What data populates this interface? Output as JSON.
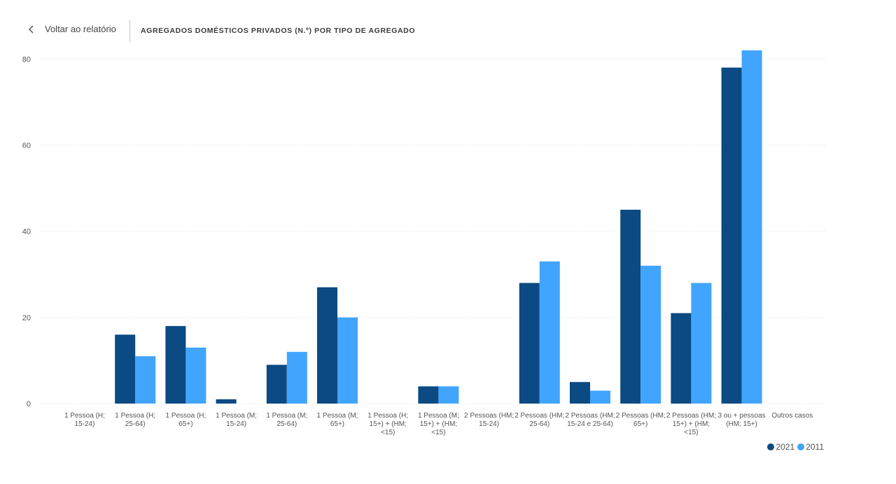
{
  "header": {
    "back_label": "Voltar ao relatório",
    "title": "AGREGADOS DOMÉSTICOS PRIVADOS (N.º) POR TIPO DE AGREGADO"
  },
  "colors": {
    "series_2021": "#0b4a82",
    "series_2011": "#41a5fd",
    "grid": "#e0e0e0",
    "axis_text": "#555555"
  },
  "chart_data": {
    "type": "bar",
    "title": "AGREGADOS DOMÉSTICOS PRIVADOS (N.º) POR TIPO DE AGREGADO",
    "xlabel": "",
    "ylabel": "",
    "ylim": [
      0,
      82
    ],
    "yticks": [
      0,
      20,
      40,
      60,
      80
    ],
    "grid": true,
    "legend_position": "bottom-right",
    "categories": [
      [
        "1 Pessoa (H;",
        "15-24)"
      ],
      [
        "1 Pessoa (H;",
        "25-64)"
      ],
      [
        "1 Pessoa (H;",
        "65+)"
      ],
      [
        "1 Pessoa (M;",
        "15-24)"
      ],
      [
        "1 Pessoa (M;",
        "25-64)"
      ],
      [
        "1 Pessoa (M;",
        "65+)"
      ],
      [
        "1 Pessoa (H;",
        "15+) + (HM;",
        "<15)"
      ],
      [
        "1 Pessoa (M;",
        "15+) + (HM;",
        "<15)"
      ],
      [
        "2 Pessoas (HM;",
        "15-24)"
      ],
      [
        "2 Pessoas (HM;",
        "25-64)"
      ],
      [
        "2 Pessoas (HM;",
        "15-24 e 25-64)"
      ],
      [
        "2 Pessoas (HM;",
        "65+)"
      ],
      [
        "2 Pessoas (HM;",
        "15+) + (HM;",
        "<15)"
      ],
      [
        "3 ou + pessoas",
        "(HM; 15+)"
      ],
      [
        "Outros casos"
      ]
    ],
    "series": [
      {
        "name": "2021",
        "values": [
          0,
          16,
          18,
          1,
          9,
          27,
          0,
          4,
          0,
          28,
          5,
          45,
          21,
          78,
          0
        ]
      },
      {
        "name": "2011",
        "values": [
          0,
          11,
          13,
          0,
          12,
          20,
          0,
          4,
          0,
          33,
          3,
          32,
          28,
          82,
          0
        ]
      }
    ]
  }
}
